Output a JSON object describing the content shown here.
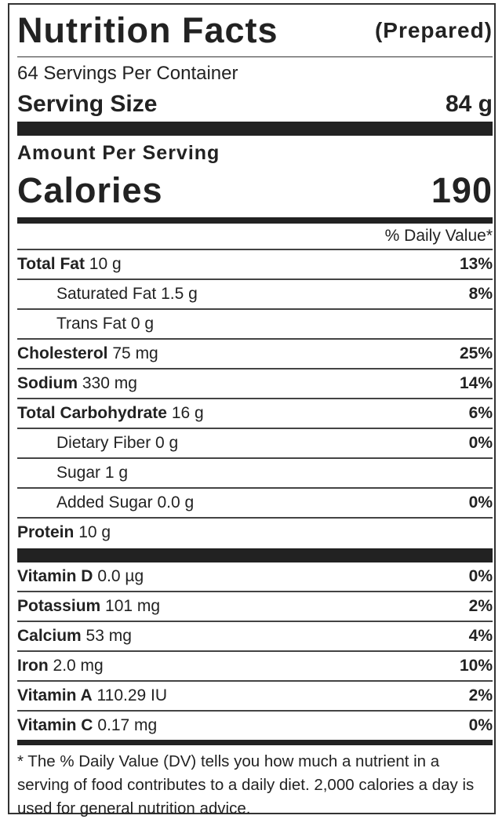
{
  "header": {
    "title": "Nutrition Facts",
    "subtitle": "(Prepared)"
  },
  "servings": "64 Servings Per Container",
  "serving_size": {
    "label": "Serving Size",
    "value": "84 g"
  },
  "amount_per_serving": "Amount Per Serving",
  "calories": {
    "label": "Calories",
    "value": "190"
  },
  "daily_value_header": "% Daily Value*",
  "nutrients": [
    {
      "name": "Total Fat",
      "amount": "10 g",
      "dv": "13%"
    },
    {
      "name": "Saturated Fat",
      "amount": "1.5 g",
      "dv": "8%"
    },
    {
      "name": "Trans Fat",
      "amount": "0 g"
    },
    {
      "name": "Cholesterol",
      "amount": "75 mg",
      "dv": "25%"
    },
    {
      "name": "Sodium",
      "amount": "330 mg",
      "dv": "14%"
    },
    {
      "name": "Total Carbohydrate",
      "amount": "16 g",
      "dv": "6%"
    },
    {
      "name": "Dietary Fiber",
      "amount": "0 g",
      "dv": "0%"
    },
    {
      "name": "Sugar",
      "amount": "1 g"
    },
    {
      "name": "Added Sugar",
      "amount": "0.0 g",
      "dv": "0%"
    },
    {
      "name": "Protein",
      "amount": "10 g"
    }
  ],
  "vitamins": [
    {
      "name": "Vitamin D",
      "amount": "0.0 µg",
      "dv": "0%"
    },
    {
      "name": "Potassium",
      "amount": "101 mg",
      "dv": "2%"
    },
    {
      "name": "Calcium",
      "amount": "53 mg",
      "dv": "4%"
    },
    {
      "name": "Iron",
      "amount": "2.0 mg",
      "dv": "10%"
    },
    {
      "name": "Vitamin A",
      "amount": "110.29 IU",
      "dv": "2%"
    },
    {
      "name": "Vitamin C",
      "amount": "0.17 mg",
      "dv": "0%"
    }
  ],
  "footnote": "* The % Daily Value (DV) tells you how much a nutrient in a serving of food contributes to a daily diet. 2,000 calories a day is used for general nutrition advice."
}
